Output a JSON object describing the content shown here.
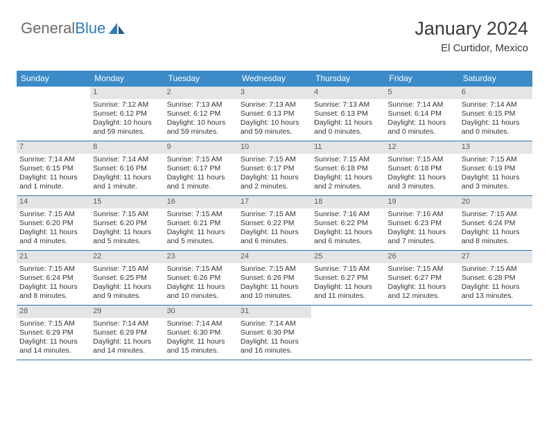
{
  "brand": {
    "part1": "General",
    "part2": "Blue"
  },
  "colors": {
    "header_bg": "#3b8bc9",
    "header_text": "#ffffff",
    "daynum_bg": "#e3e5e6",
    "daynum_text": "#5b5b5b",
    "body_text": "#333333",
    "row_border": "#2f6ea6",
    "title_text": "#3a3a3a",
    "logo_gray": "#6b6b6b",
    "logo_blue": "#2d7bbf"
  },
  "title": "January 2024",
  "location": "El Curtidor, Mexico",
  "day_headers": [
    "Sunday",
    "Monday",
    "Tuesday",
    "Wednesday",
    "Thursday",
    "Friday",
    "Saturday"
  ],
  "weeks": [
    [
      {
        "day": "",
        "sunrise": "",
        "sunset": "",
        "daylight": "",
        "empty": true
      },
      {
        "day": "1",
        "sunrise": "Sunrise: 7:12 AM",
        "sunset": "Sunset: 6:12 PM",
        "daylight": "Daylight: 10 hours and 59 minutes."
      },
      {
        "day": "2",
        "sunrise": "Sunrise: 7:13 AM",
        "sunset": "Sunset: 6:12 PM",
        "daylight": "Daylight: 10 hours and 59 minutes."
      },
      {
        "day": "3",
        "sunrise": "Sunrise: 7:13 AM",
        "sunset": "Sunset: 6:13 PM",
        "daylight": "Daylight: 10 hours and 59 minutes."
      },
      {
        "day": "4",
        "sunrise": "Sunrise: 7:13 AM",
        "sunset": "Sunset: 6:13 PM",
        "daylight": "Daylight: 11 hours and 0 minutes."
      },
      {
        "day": "5",
        "sunrise": "Sunrise: 7:14 AM",
        "sunset": "Sunset: 6:14 PM",
        "daylight": "Daylight: 11 hours and 0 minutes."
      },
      {
        "day": "6",
        "sunrise": "Sunrise: 7:14 AM",
        "sunset": "Sunset: 6:15 PM",
        "daylight": "Daylight: 11 hours and 0 minutes."
      }
    ],
    [
      {
        "day": "7",
        "sunrise": "Sunrise: 7:14 AM",
        "sunset": "Sunset: 6:15 PM",
        "daylight": "Daylight: 11 hours and 1 minute."
      },
      {
        "day": "8",
        "sunrise": "Sunrise: 7:14 AM",
        "sunset": "Sunset: 6:16 PM",
        "daylight": "Daylight: 11 hours and 1 minute."
      },
      {
        "day": "9",
        "sunrise": "Sunrise: 7:15 AM",
        "sunset": "Sunset: 6:17 PM",
        "daylight": "Daylight: 11 hours and 1 minute."
      },
      {
        "day": "10",
        "sunrise": "Sunrise: 7:15 AM",
        "sunset": "Sunset: 6:17 PM",
        "daylight": "Daylight: 11 hours and 2 minutes."
      },
      {
        "day": "11",
        "sunrise": "Sunrise: 7:15 AM",
        "sunset": "Sunset: 6:18 PM",
        "daylight": "Daylight: 11 hours and 2 minutes."
      },
      {
        "day": "12",
        "sunrise": "Sunrise: 7:15 AM",
        "sunset": "Sunset: 6:18 PM",
        "daylight": "Daylight: 11 hours and 3 minutes."
      },
      {
        "day": "13",
        "sunrise": "Sunrise: 7:15 AM",
        "sunset": "Sunset: 6:19 PM",
        "daylight": "Daylight: 11 hours and 3 minutes."
      }
    ],
    [
      {
        "day": "14",
        "sunrise": "Sunrise: 7:15 AM",
        "sunset": "Sunset: 6:20 PM",
        "daylight": "Daylight: 11 hours and 4 minutes."
      },
      {
        "day": "15",
        "sunrise": "Sunrise: 7:15 AM",
        "sunset": "Sunset: 6:20 PM",
        "daylight": "Daylight: 11 hours and 5 minutes."
      },
      {
        "day": "16",
        "sunrise": "Sunrise: 7:15 AM",
        "sunset": "Sunset: 6:21 PM",
        "daylight": "Daylight: 11 hours and 5 minutes."
      },
      {
        "day": "17",
        "sunrise": "Sunrise: 7:15 AM",
        "sunset": "Sunset: 6:22 PM",
        "daylight": "Daylight: 11 hours and 6 minutes."
      },
      {
        "day": "18",
        "sunrise": "Sunrise: 7:16 AM",
        "sunset": "Sunset: 6:22 PM",
        "daylight": "Daylight: 11 hours and 6 minutes."
      },
      {
        "day": "19",
        "sunrise": "Sunrise: 7:16 AM",
        "sunset": "Sunset: 6:23 PM",
        "daylight": "Daylight: 11 hours and 7 minutes."
      },
      {
        "day": "20",
        "sunrise": "Sunrise: 7:15 AM",
        "sunset": "Sunset: 6:24 PM",
        "daylight": "Daylight: 11 hours and 8 minutes."
      }
    ],
    [
      {
        "day": "21",
        "sunrise": "Sunrise: 7:15 AM",
        "sunset": "Sunset: 6:24 PM",
        "daylight": "Daylight: 11 hours and 8 minutes."
      },
      {
        "day": "22",
        "sunrise": "Sunrise: 7:15 AM",
        "sunset": "Sunset: 6:25 PM",
        "daylight": "Daylight: 11 hours and 9 minutes."
      },
      {
        "day": "23",
        "sunrise": "Sunrise: 7:15 AM",
        "sunset": "Sunset: 6:26 PM",
        "daylight": "Daylight: 11 hours and 10 minutes."
      },
      {
        "day": "24",
        "sunrise": "Sunrise: 7:15 AM",
        "sunset": "Sunset: 6:26 PM",
        "daylight": "Daylight: 11 hours and 10 minutes."
      },
      {
        "day": "25",
        "sunrise": "Sunrise: 7:15 AM",
        "sunset": "Sunset: 6:27 PM",
        "daylight": "Daylight: 11 hours and 11 minutes."
      },
      {
        "day": "26",
        "sunrise": "Sunrise: 7:15 AM",
        "sunset": "Sunset: 6:27 PM",
        "daylight": "Daylight: 11 hours and 12 minutes."
      },
      {
        "day": "27",
        "sunrise": "Sunrise: 7:15 AM",
        "sunset": "Sunset: 6:28 PM",
        "daylight": "Daylight: 11 hours and 13 minutes."
      }
    ],
    [
      {
        "day": "28",
        "sunrise": "Sunrise: 7:15 AM",
        "sunset": "Sunset: 6:29 PM",
        "daylight": "Daylight: 11 hours and 14 minutes."
      },
      {
        "day": "29",
        "sunrise": "Sunrise: 7:14 AM",
        "sunset": "Sunset: 6:29 PM",
        "daylight": "Daylight: 11 hours and 14 minutes."
      },
      {
        "day": "30",
        "sunrise": "Sunrise: 7:14 AM",
        "sunset": "Sunset: 6:30 PM",
        "daylight": "Daylight: 11 hours and 15 minutes."
      },
      {
        "day": "31",
        "sunrise": "Sunrise: 7:14 AM",
        "sunset": "Sunset: 6:30 PM",
        "daylight": "Daylight: 11 hours and 16 minutes."
      },
      {
        "day": "",
        "sunrise": "",
        "sunset": "",
        "daylight": "",
        "empty": true
      },
      {
        "day": "",
        "sunrise": "",
        "sunset": "",
        "daylight": "",
        "empty": true
      },
      {
        "day": "",
        "sunrise": "",
        "sunset": "",
        "daylight": "",
        "empty": true
      }
    ]
  ]
}
